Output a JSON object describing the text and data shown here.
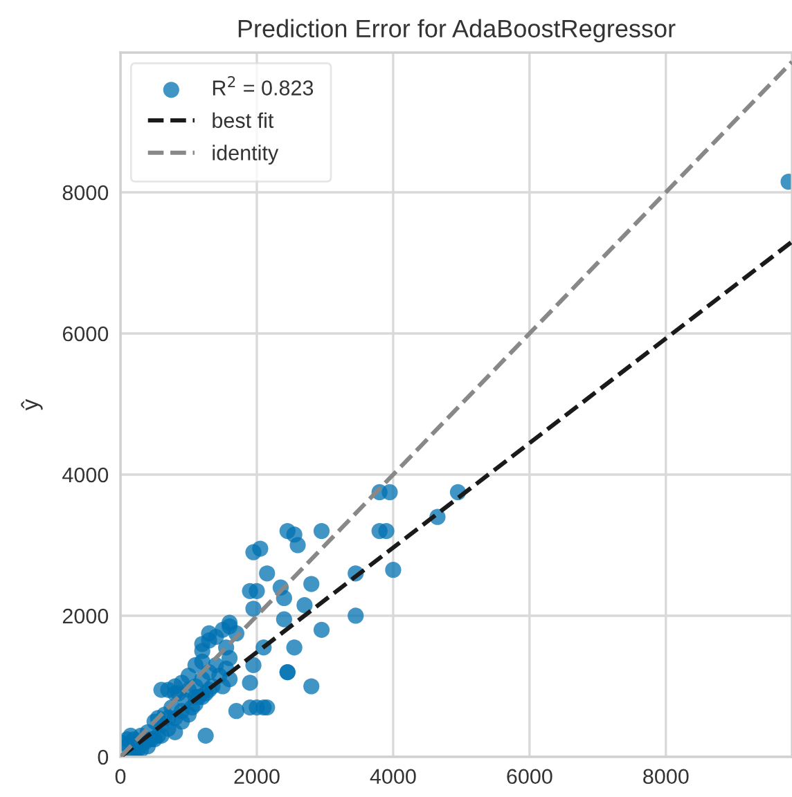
{
  "chart_data": {
    "type": "scatter",
    "title": "Prediction Error for AdaBoostRegressor",
    "ylabel": "ŷ",
    "xlim": [
      0,
      9850
    ],
    "ylim": [
      0,
      9980
    ],
    "xticks": [
      0,
      2000,
      4000,
      6000,
      8000
    ],
    "yticks": [
      0,
      2000,
      4000,
      6000,
      8000
    ],
    "grid": true,
    "legend": "top left",
    "series": [
      {
        "name": "R$^{2}$ = 0.823",
        "marker": "circle",
        "color": "#0072b2",
        "x": [
          9800,
          4950,
          4650,
          3800,
          3950,
          4000,
          2450,
          2550,
          2950,
          3800,
          3900,
          2600,
          2150,
          2800,
          3450,
          3450,
          2700,
          2400,
          2950,
          2550,
          2450,
          2800,
          2100,
          2000,
          2050,
          1950,
          1900,
          2350,
          1950,
          2400,
          1600,
          1300,
          1200,
          1550,
          2100,
          1200,
          1950,
          2450,
          1600,
          800,
          1100,
          1900,
          1700,
          2150,
          1250,
          550,
          100,
          150,
          200,
          250,
          300,
          350,
          400,
          450,
          500,
          550,
          600,
          650,
          700,
          750,
          800,
          850,
          900,
          950,
          1000,
          1050,
          1100,
          1150,
          1200,
          1250,
          1300,
          1350,
          1400,
          1450,
          1500,
          1550,
          1600,
          200,
          300,
          400,
          500,
          600,
          700,
          800,
          900,
          1000,
          1100,
          1200,
          1300,
          100,
          150,
          20,
          600,
          700,
          800,
          900,
          1000,
          1100,
          1200,
          1300,
          1400,
          1500,
          1600,
          1700,
          1900,
          2000
        ],
        "values": [
          8150,
          3750,
          3400,
          3750,
          3750,
          2650,
          3200,
          3150,
          3200,
          3200,
          3200,
          3000,
          2600,
          2450,
          2600,
          2000,
          2150,
          1950,
          1800,
          1550,
          1200,
          1000,
          700,
          2350,
          2950,
          2900,
          2350,
          2400,
          2100,
          2250,
          1850,
          1750,
          1600,
          1550,
          1550,
          1350,
          1300,
          1200,
          1100,
          900,
          850,
          1050,
          650,
          700,
          300,
          550,
          150,
          50,
          250,
          100,
          300,
          200,
          350,
          250,
          500,
          300,
          450,
          600,
          400,
          700,
          550,
          900,
          650,
          800,
          950,
          700,
          1000,
          850,
          1100,
          900,
          1200,
          1000,
          1300,
          1150,
          1000,
          1250,
          1400,
          50,
          100,
          150,
          250,
          300,
          550,
          350,
          500,
          600,
          750,
          850,
          950,
          250,
          300,
          200,
          950,
          950,
          1000,
          1050,
          1150,
          1300,
          1500,
          1650,
          1700,
          1800,
          1900,
          1750,
          700,
          700
        ]
      },
      {
        "name": "best fit",
        "type": "line",
        "marker": "none",
        "line_style": "dashed",
        "color": "#1a1a1a",
        "x": [
          0,
          9850
        ],
        "values": [
          0,
          7300
        ]
      },
      {
        "name": "identity",
        "type": "line",
        "marker": "none",
        "line_style": "dashed",
        "color": "#888888",
        "x": [
          0,
          9850
        ],
        "values": [
          0,
          9850
        ]
      }
    ]
  }
}
